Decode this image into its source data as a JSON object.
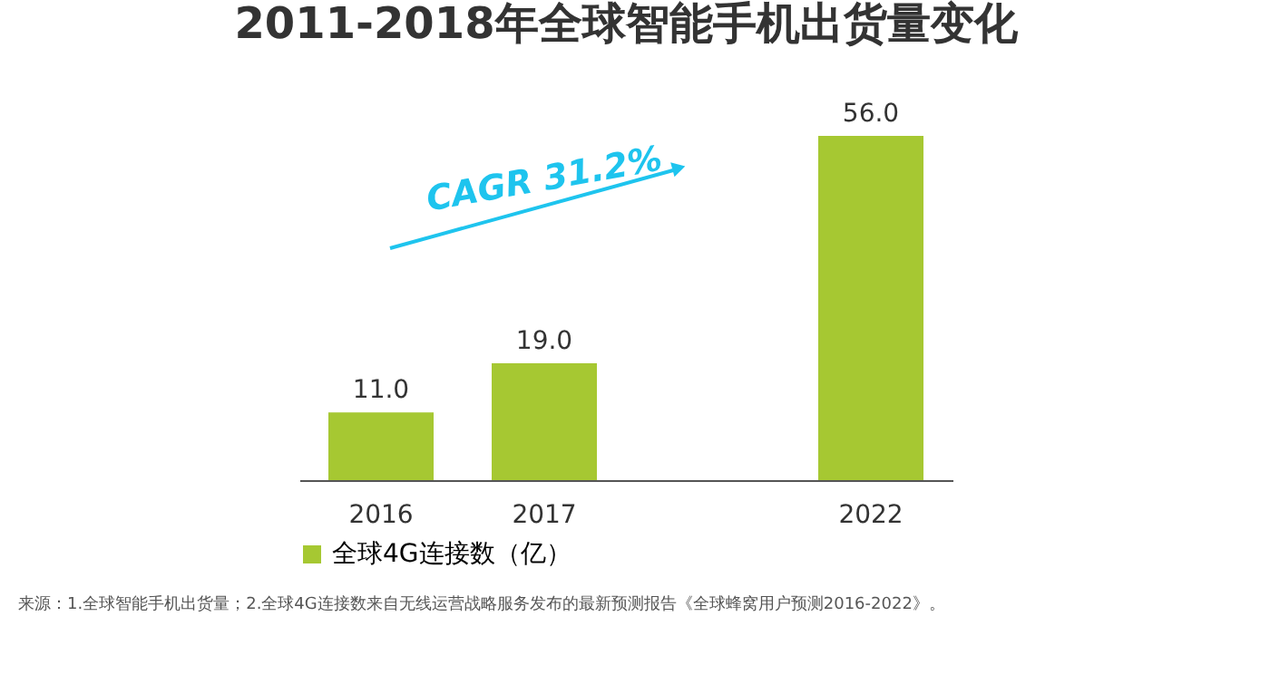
{
  "chart_data": {
    "type": "bar",
    "title": "2011-2018年全球智能手机出货量变化",
    "categories": [
      "2016",
      "2017",
      null,
      "2022"
    ],
    "series": [
      {
        "name": "全球4G连接数（亿）",
        "color": "#a6c832",
        "values": [
          11.0,
          19.0,
          null,
          56.0
        ],
        "value_labels": [
          "11.0",
          "19.0",
          null,
          "56.0"
        ]
      }
    ],
    "legend": "bottom",
    "grid": false,
    "annotations": [
      "CAGR  31.2%",
      "来源：1.全球智能手机出货量；2.全球4G连接数来自无线运营战略服务发布的最新预测报告《全球蜂窝用户预测2016-2022》。"
    ]
  }
}
